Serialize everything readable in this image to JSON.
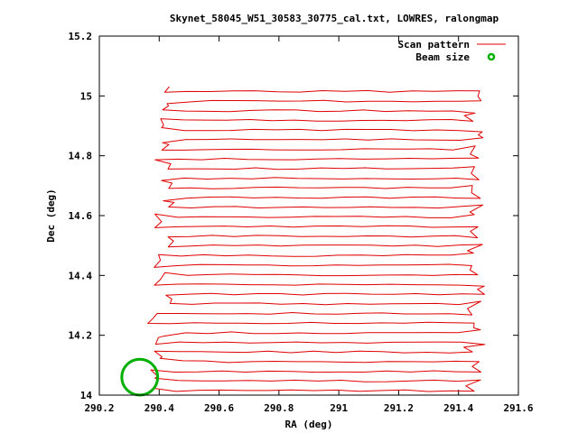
{
  "chart_data": {
    "type": "line",
    "title": "Skynet_58045_W51_30583_30775_cal.txt, LOWRES, ralongmap",
    "xlabel": "RA (deg)",
    "ylabel": "Dec (deg)",
    "xlim": [
      290.2,
      291.6
    ],
    "ylim": [
      14.0,
      15.2
    ],
    "xticks": [
      290.2,
      290.4,
      290.6,
      290.8,
      291.0,
      291.2,
      291.4,
      291.6
    ],
    "xtick_labels": [
      "290.2",
      "290.4",
      "290.6",
      "290.8",
      "291",
      "291.2",
      "291.4",
      "291.6"
    ],
    "yticks": [
      14.0,
      14.2,
      14.4,
      14.6,
      14.8,
      15.0,
      15.2
    ],
    "ytick_labels": [
      "14",
      "14.2",
      "14.4",
      "14.6",
      "14.8",
      "15",
      "15.2"
    ],
    "legend_position": "top-right",
    "grid": false,
    "series": [
      {
        "name": "Scan pattern",
        "color": "#e00000",
        "style": "line",
        "scan_rows": {
          "dec_start": 14.015,
          "dec_end": 15.015,
          "row_count": 32,
          "ra_min": 290.38,
          "ra_max": 291.45
        }
      },
      {
        "name": "Beam size",
        "color": "#00b000",
        "style": "circle",
        "center": [
          290.335,
          14.06
        ],
        "radius_deg": 0.06
      }
    ]
  }
}
